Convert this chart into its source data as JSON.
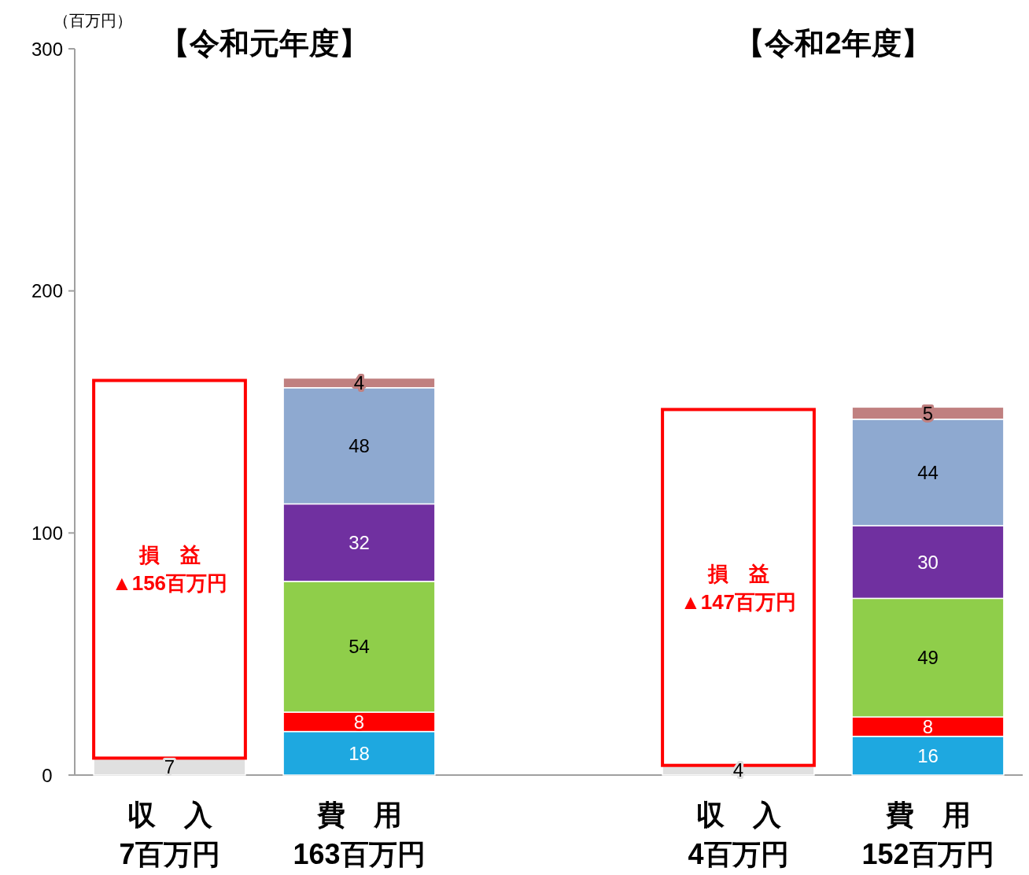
{
  "chart_data": {
    "type": "bar",
    "stacked": true,
    "ylabel": "（百万円）",
    "ylim": [
      0,
      300
    ],
    "yticks": [
      0,
      100,
      200,
      300
    ],
    "data_labels": true,
    "grid": false,
    "categories": [
      "収　入\n7百万円",
      "費　用\n163百万円",
      null,
      "収　入\n4百万円",
      "費　用\n152百万円"
    ],
    "annotations": [
      "【令和元年度】",
      "【令和2年度】"
    ],
    "series": [
      {
        "color": "#e0e0e0",
        "values": [
          7,
          null,
          null,
          4,
          null
        ]
      },
      {
        "color": "#ff0000",
        "values": [
          156,
          null,
          null,
          147,
          null
        ],
        "value_labels": [
          "損　益\n▲156百万円",
          null,
          null,
          "損　益\n▲147百万円",
          null
        ]
      },
      {
        "color": "#1ea8e0",
        "values": [
          null,
          18,
          null,
          null,
          16
        ]
      },
      {
        "color": "#ff0000",
        "values": [
          null,
          8,
          null,
          null,
          8
        ]
      },
      {
        "color": "#8fce4a",
        "values": [
          null,
          54,
          null,
          null,
          49
        ]
      },
      {
        "color": "#7030a0",
        "values": [
          null,
          32,
          null,
          null,
          30
        ]
      },
      {
        "color": "#8ea9d0",
        "values": [
          null,
          48,
          null,
          null,
          44
        ]
      },
      {
        "color": "#c08080",
        "values": [
          null,
          4,
          null,
          null,
          5
        ]
      }
    ]
  }
}
